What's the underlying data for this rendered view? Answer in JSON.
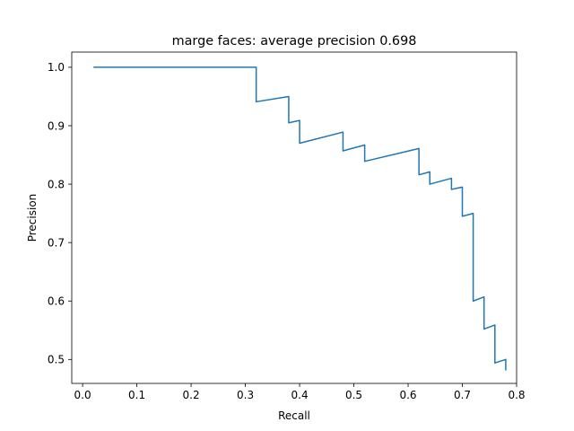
{
  "chart_data": {
    "type": "line",
    "title": "marge faces: average precision 0.698",
    "xlabel": "Recall",
    "ylabel": "Precision",
    "xlim": [
      -0.02,
      0.8
    ],
    "ylim": [
      0.459,
      1.026
    ],
    "x_ticks": [
      0,
      0.1,
      0.2,
      0.3,
      0.4,
      0.5,
      0.6,
      0.7,
      0.8
    ],
    "x_tick_labels": [
      "0.0",
      "0.1",
      "0.2",
      "0.3",
      "0.4",
      "0.5",
      "0.6",
      "0.7",
      "0.8"
    ],
    "y_ticks": [
      0.5,
      0.6,
      0.7,
      0.8,
      0.9,
      1.0
    ],
    "y_tick_labels": [
      "0.5",
      "0.6",
      "0.7",
      "0.8",
      "0.9",
      "1.0"
    ],
    "grid": false,
    "line_color": "#1f77b4",
    "series": [
      {
        "x": [
          0.02,
          0.32,
          0.32,
          0.38,
          0.38,
          0.4,
          0.4,
          0.48,
          0.48,
          0.52,
          0.52,
          0.62,
          0.62,
          0.64,
          0.64,
          0.68,
          0.68,
          0.7,
          0.7,
          0.72,
          0.72,
          0.74,
          0.74,
          0.76,
          0.76,
          0.78,
          0.78
        ],
        "y": [
          1.0,
          1.0,
          0.941,
          0.95,
          0.905,
          0.909,
          0.87,
          0.889,
          0.857,
          0.867,
          0.839,
          0.861,
          0.816,
          0.821,
          0.8,
          0.81,
          0.791,
          0.795,
          0.745,
          0.75,
          0.6,
          0.607,
          0.552,
          0.559,
          0.494,
          0.5,
          0.481
        ]
      }
    ]
  }
}
